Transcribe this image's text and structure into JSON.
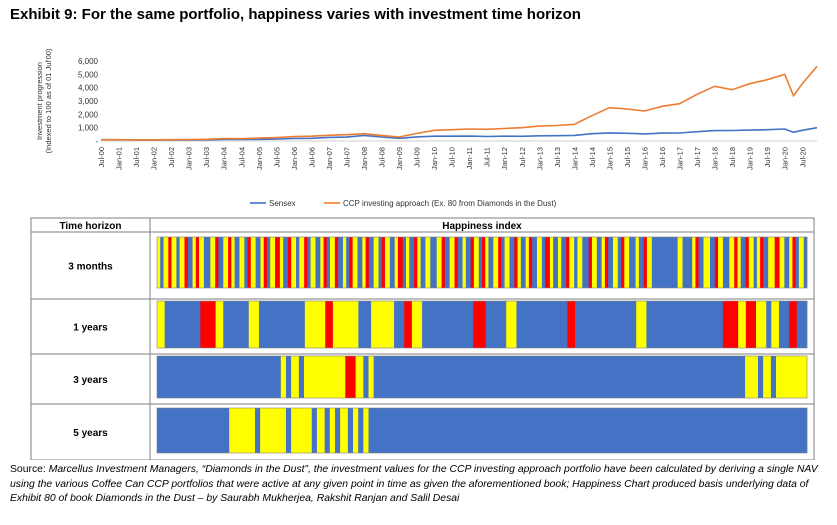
{
  "header": {
    "title": "Exhibit 9: For the same portfolio, happiness varies with investment time horizon"
  },
  "chart_data": [
    {
      "type": "line",
      "ylabel": "Investment progression (Indexed to 100 as of 01 Jul'00)",
      "ylim": [
        0,
        6000
      ],
      "yticks": [
        "-",
        "1,000",
        "2,000",
        "3,000",
        "4,000",
        "5,000",
        "6,000"
      ],
      "ytick_values": [
        0,
        1000,
        2000,
        3000,
        4000,
        5000,
        6000
      ],
      "x_start": 2000.5,
      "x_end": 2020.92,
      "categories": [
        "Jul-00",
        "Jan-01",
        "Jul-01",
        "Jan-02",
        "Jul-02",
        "Jan-03",
        "Jul-03",
        "Jan-04",
        "Jul-04",
        "Jan-05",
        "Jul-05",
        "Jan-06",
        "Jul-06",
        "Jan-07",
        "Jul-07",
        "Jan-08",
        "Jul-08",
        "Jan-09",
        "Jul-09",
        "Jan-10",
        "Jul-10",
        "Jan-11",
        "Jul-11",
        "Jan-12",
        "Jul-12",
        "Jan-13",
        "Jul-13",
        "Jan-14",
        "Jul-14",
        "Jan-15",
        "Jul-15",
        "Jan-16",
        "Jul-16",
        "Jan-17",
        "Jul-17",
        "Jan-18",
        "Jul-18",
        "Jan-19",
        "Jul-19",
        "Jan-20",
        "Jul-20"
      ],
      "colors": {
        "sensex": "#4472c4",
        "ccp": "#ed7d31"
      },
      "series": [
        {
          "name": "Sensex",
          "x": [
            2000.5,
            2001.0,
            2001.5,
            2002.0,
            2002.5,
            2003.0,
            2003.5,
            2004.0,
            2004.5,
            2005.0,
            2005.5,
            2006.0,
            2006.5,
            2007.0,
            2007.5,
            2008.0,
            2008.5,
            2009.0,
            2009.5,
            2010.0,
            2010.5,
            2011.0,
            2011.5,
            2012.0,
            2012.5,
            2013.0,
            2013.5,
            2014.0,
            2014.5,
            2015.0,
            2015.5,
            2016.0,
            2016.5,
            2017.0,
            2017.5,
            2018.0,
            2018.5,
            2019.0,
            2019.5,
            2020.0,
            2020.25,
            2020.5,
            2020.92
          ],
          "values": [
            100,
            88,
            80,
            82,
            80,
            75,
            90,
            115,
            110,
            130,
            145,
            190,
            200,
            270,
            290,
            420,
            300,
            200,
            310,
            360,
            360,
            370,
            340,
            360,
            350,
            390,
            400,
            420,
            550,
            610,
            580,
            530,
            590,
            600,
            700,
            780,
            790,
            820,
            850,
            900,
            650,
            800,
            1000
          ]
        },
        {
          "name": "CCP investing approach (Ex. 80 from Diamonds in the Dust)",
          "x": [
            2000.5,
            2001.0,
            2001.5,
            2002.0,
            2002.5,
            2003.0,
            2003.5,
            2004.0,
            2004.5,
            2005.0,
            2005.5,
            2006.0,
            2006.5,
            2007.0,
            2007.5,
            2008.0,
            2008.5,
            2009.0,
            2009.5,
            2010.0,
            2010.5,
            2011.0,
            2011.5,
            2012.0,
            2012.5,
            2013.0,
            2013.5,
            2014.0,
            2014.5,
            2015.0,
            2015.5,
            2016.0,
            2016.5,
            2017.0,
            2017.5,
            2018.0,
            2018.5,
            2019.0,
            2019.5,
            2020.0,
            2020.25,
            2020.5,
            2020.92
          ],
          "values": [
            100,
            95,
            90,
            92,
            95,
            105,
            130,
            190,
            175,
            220,
            260,
            330,
            360,
            430,
            470,
            550,
            420,
            300,
            560,
            800,
            850,
            900,
            880,
            940,
            1000,
            1120,
            1160,
            1250,
            1900,
            2500,
            2400,
            2250,
            2600,
            2800,
            3500,
            4100,
            3850,
            4300,
            4600,
            5000,
            3400,
            4300,
            5600
          ]
        }
      ]
    },
    {
      "type": "heatmap",
      "columns": [
        "Time horizon",
        "Happiness index"
      ],
      "rows": [
        "3 months",
        "1 years",
        "3 years",
        "5 years"
      ],
      "colors": {
        "blue": "#4472c4",
        "yellow": "#ffff00",
        "red": "#ff0000",
        "orange": "#ffc000"
      },
      "strips": [
        [
          [
            "Y",
            2
          ],
          [
            "B",
            2
          ],
          [
            "Y",
            3
          ],
          [
            "R",
            2
          ],
          [
            "Y",
            3
          ],
          [
            "B",
            2
          ],
          [
            "Y",
            3
          ],
          [
            "R",
            2
          ],
          [
            "B",
            3
          ],
          [
            "Y",
            2
          ],
          [
            "R",
            2
          ],
          [
            "Y",
            3
          ],
          [
            "B",
            4
          ],
          [
            "Y",
            3
          ],
          [
            "R",
            2
          ],
          [
            "B",
            3
          ],
          [
            "Y",
            3
          ],
          [
            "R",
            2
          ],
          [
            "Y",
            2
          ],
          [
            "B",
            3
          ],
          [
            "Y",
            3
          ],
          [
            "B",
            2
          ],
          [
            "R",
            2
          ],
          [
            "Y",
            3
          ],
          [
            "B",
            3
          ],
          [
            "Y",
            2
          ],
          [
            "R",
            2
          ],
          [
            "B",
            2
          ],
          [
            "Y",
            3
          ],
          [
            "R",
            3
          ],
          [
            "Y",
            2
          ],
          [
            "B",
            3
          ],
          [
            "R",
            2
          ],
          [
            "Y",
            3
          ],
          [
            "B",
            2
          ],
          [
            "Y",
            3
          ],
          [
            "R",
            2
          ],
          [
            "B",
            2
          ],
          [
            "Y",
            3
          ],
          [
            "B",
            3
          ],
          [
            "Y",
            2
          ],
          [
            "R",
            2
          ],
          [
            "B",
            2
          ],
          [
            "Y",
            3
          ],
          [
            "R",
            2
          ],
          [
            "B",
            3
          ],
          [
            "Y",
            2
          ],
          [
            "B",
            2
          ],
          [
            "R",
            2
          ],
          [
            "Y",
            3
          ],
          [
            "B",
            3
          ],
          [
            "Y",
            2
          ],
          [
            "R",
            2
          ],
          [
            "B",
            3
          ],
          [
            "Y",
            3
          ],
          [
            "B",
            2
          ],
          [
            "R",
            2
          ],
          [
            "Y",
            3
          ],
          [
            "B",
            3
          ],
          [
            "Y",
            2
          ],
          [
            "R",
            3
          ],
          [
            "B",
            2
          ],
          [
            "Y",
            2
          ],
          [
            "B",
            3
          ],
          [
            "R",
            2
          ],
          [
            "Y",
            2
          ],
          [
            "B",
            3
          ],
          [
            "Y",
            3
          ],
          [
            "B",
            4
          ],
          [
            "Y",
            3
          ],
          [
            "R",
            2
          ],
          [
            "B",
            3
          ],
          [
            "Y",
            3
          ],
          [
            "R",
            2
          ],
          [
            "B",
            3
          ],
          [
            "Y",
            2
          ],
          [
            "B",
            3
          ],
          [
            "R",
            2
          ],
          [
            "Y",
            3
          ],
          [
            "B",
            2
          ],
          [
            "R",
            2
          ],
          [
            "Y",
            2
          ],
          [
            "B",
            3
          ],
          [
            "Y",
            3
          ],
          [
            "R",
            2
          ],
          [
            "B",
            2
          ],
          [
            "Y",
            3
          ],
          [
            "B",
            3
          ],
          [
            "R",
            2
          ],
          [
            "Y",
            2
          ],
          [
            "B",
            3
          ],
          [
            "Y",
            2
          ],
          [
            "R",
            2
          ],
          [
            "B",
            3
          ],
          [
            "Y",
            3
          ],
          [
            "B",
            2
          ],
          [
            "R",
            3
          ],
          [
            "Y",
            2
          ],
          [
            "B",
            3
          ],
          [
            "Y",
            2
          ],
          [
            "B",
            3
          ],
          [
            "R",
            2
          ],
          [
            "Y",
            3
          ],
          [
            "B",
            2
          ],
          [
            "Y",
            3
          ],
          [
            "B",
            4
          ],
          [
            "R",
            2
          ],
          [
            "Y",
            3
          ],
          [
            "B",
            3
          ],
          [
            "Y",
            2
          ],
          [
            "R",
            2
          ],
          [
            "B",
            3
          ],
          [
            "Y",
            3
          ],
          [
            "B",
            2
          ],
          [
            "R",
            2
          ],
          [
            "Y",
            3
          ],
          [
            "B",
            4
          ],
          [
            "Y",
            2
          ],
          [
            "B",
            3
          ],
          [
            "R",
            2
          ],
          [
            "Y",
            3
          ],
          [
            "B",
            16
          ],
          [
            "Y",
            3
          ],
          [
            "B",
            6
          ],
          [
            "Y",
            2
          ],
          [
            "R",
            2
          ],
          [
            "B",
            3
          ],
          [
            "Y",
            4
          ],
          [
            "B",
            3
          ],
          [
            "R",
            2
          ],
          [
            "Y",
            3
          ],
          [
            "B",
            4
          ],
          [
            "Y",
            3
          ],
          [
            "R",
            2
          ],
          [
            "Y",
            2
          ],
          [
            "B",
            3
          ],
          [
            "R",
            2
          ],
          [
            "Y",
            3
          ],
          [
            "B",
            2
          ],
          [
            "Y",
            2
          ],
          [
            "R",
            2
          ],
          [
            "B",
            3
          ],
          [
            "Y",
            4
          ],
          [
            "R",
            3
          ],
          [
            "Y",
            3
          ],
          [
            "B",
            3
          ],
          [
            "Y",
            2
          ],
          [
            "R",
            2
          ],
          [
            "B",
            2
          ],
          [
            "Y",
            3
          ],
          [
            "B",
            2
          ]
        ],
        [
          [
            "Y",
            3
          ],
          [
            "B",
            14
          ],
          [
            "R",
            6
          ],
          [
            "Y",
            3
          ],
          [
            "B",
            10
          ],
          [
            "Y",
            4
          ],
          [
            "B",
            18
          ],
          [
            "Y",
            8
          ],
          [
            "R",
            3
          ],
          [
            "Y",
            10
          ],
          [
            "B",
            5
          ],
          [
            "Y",
            9
          ],
          [
            "B",
            4
          ],
          [
            "R",
            3
          ],
          [
            "Y",
            4
          ],
          [
            "B",
            20
          ],
          [
            "R",
            5
          ],
          [
            "B",
            8
          ],
          [
            "Y",
            4
          ],
          [
            "B",
            20
          ],
          [
            "R",
            3
          ],
          [
            "B",
            24
          ],
          [
            "Y",
            4
          ],
          [
            "B",
            30
          ],
          [
            "R",
            6
          ],
          [
            "Y",
            3
          ],
          [
            "R",
            4
          ],
          [
            "Y",
            4
          ],
          [
            "B",
            2
          ],
          [
            "Y",
            3
          ],
          [
            "B",
            4
          ],
          [
            "R",
            3
          ],
          [
            "B",
            4
          ]
        ],
        [
          [
            "B",
            48
          ],
          [
            "Y",
            2
          ],
          [
            "B",
            2
          ],
          [
            "Y",
            3
          ],
          [
            "B",
            2
          ],
          [
            "Y",
            16
          ],
          [
            "R",
            4
          ],
          [
            "Y",
            3
          ],
          [
            "B",
            2
          ],
          [
            "Y",
            2
          ],
          [
            "B",
            144
          ],
          [
            "Y",
            5
          ],
          [
            "B",
            2
          ],
          [
            "Y",
            3
          ],
          [
            "B",
            2
          ],
          [
            "Y",
            12
          ]
        ],
        [
          [
            "B",
            28
          ],
          [
            "Y",
            10
          ],
          [
            "B",
            2
          ],
          [
            "Y",
            10
          ],
          [
            "B",
            2
          ],
          [
            "Y",
            8
          ],
          [
            "B",
            2
          ],
          [
            "Y",
            3
          ],
          [
            "B",
            2
          ],
          [
            "Y",
            2
          ],
          [
            "B",
            2
          ],
          [
            "Y",
            3
          ],
          [
            "B",
            2
          ],
          [
            "Y",
            2
          ],
          [
            "B",
            2
          ],
          [
            "Y",
            2
          ],
          [
            "B",
            170
          ]
        ]
      ]
    }
  ],
  "source": {
    "lead": "Source: ",
    "text": "Marcellus Investment Managers, “Diamonds in the Dust”, the investment values for the CCP investing approach portfolio have been calculated by deriving a single NAV using the various Coffee Can CCP portfolios that were active at any given point in time as given the aforementioned book; Happiness Chart produced basis underlying data of Exhibit 80 of book Diamonds in the Dust – by Saurabh Mukherjea, Rakshit Ranjan and Salil Desai"
  }
}
